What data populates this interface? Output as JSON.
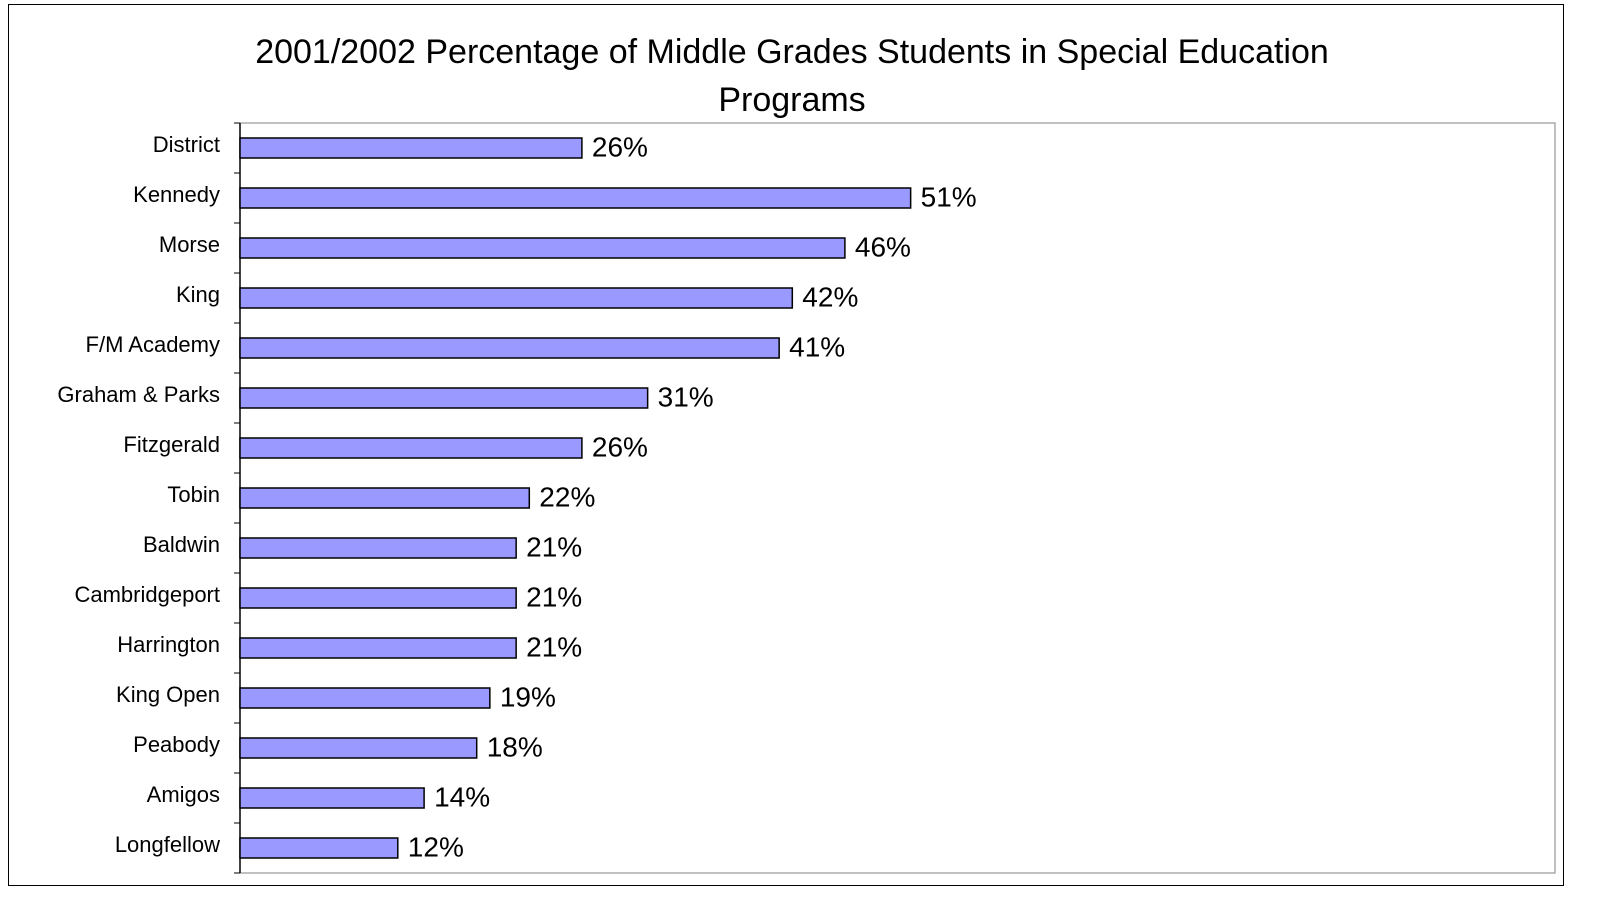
{
  "chart_data": {
    "type": "bar",
    "orientation": "horizontal",
    "title": "2001/2002 Percentage of Middle Grades Students in Special Education Programs",
    "categories": [
      "District",
      "Kennedy",
      "Morse",
      "King",
      "F/M Academy",
      "Graham & Parks",
      "Fitzgerald",
      "Tobin",
      "Baldwin",
      "Cambridgeport",
      "Harrington",
      "King Open",
      "Peabody",
      "Amigos",
      "Longfellow"
    ],
    "values": [
      26,
      51,
      46,
      42,
      41,
      31,
      26,
      22,
      21,
      21,
      21,
      19,
      18,
      14,
      12
    ],
    "value_labels": [
      "26%",
      "51%",
      "46%",
      "42%",
      "41%",
      "31%",
      "26%",
      "22%",
      "21%",
      "21%",
      "21%",
      "19%",
      "18%",
      "14%",
      "12%"
    ],
    "color": "#9999ff",
    "xlim": [
      0,
      100
    ]
  }
}
